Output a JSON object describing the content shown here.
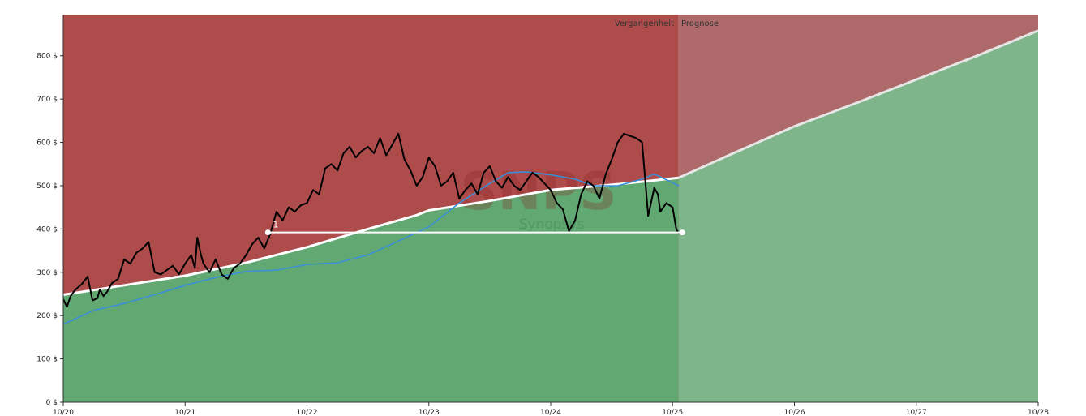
{
  "chart_data": {
    "type": "line",
    "watermark": {
      "ticker": "SNPS",
      "company": "Synopsys"
    },
    "region_labels": {
      "past": "Vergangenheit",
      "forecast": "Prognose"
    },
    "y_axis": {
      "ticks": [
        0,
        100,
        200,
        300,
        400,
        500,
        600,
        700,
        800
      ],
      "tick_labels": [
        "0 $",
        "100 $",
        "200 $",
        "300 $",
        "400 $",
        "500 $",
        "600 $",
        "700 $",
        "800 $"
      ],
      "ylim": [
        0,
        895
      ]
    },
    "x_axis": {
      "ticks": [
        2020,
        2021,
        2022,
        2023,
        2024,
        2025,
        2026,
        2027,
        2028
      ],
      "tick_labels": [
        "10/20",
        "10/21",
        "10/22",
        "10/23",
        "10/24",
        "10/25",
        "10/26",
        "10/27",
        "10/28"
      ],
      "xlim": [
        2020,
        2028
      ],
      "forecast_start": 2025.05
    },
    "colors": {
      "past_overvalued": "#ae4b4b",
      "past_undervalued": "#62a872",
      "forecast_overvalued": "#ae6a6a",
      "forecast_undervalued": "#7eb58b",
      "price": "#000000",
      "moving_average": "#3a8fd8",
      "fair_value": "#ffffff",
      "forecast_line": "#e6e6e6",
      "marker_line": "#ffffff"
    },
    "fair_value": {
      "x": [
        2020,
        2020.5,
        2021,
        2021.5,
        2022,
        2022.5,
        2022.9,
        2023,
        2023.5,
        2024,
        2024.5,
        2025.05
      ],
      "y": [
        248,
        270,
        292,
        322,
        358,
        400,
        432,
        443,
        465,
        490,
        502,
        518
      ]
    },
    "forecast": {
      "x": [
        2025.05,
        2025.5,
        2026,
        2026.5,
        2027,
        2027.5,
        2028
      ],
      "y": [
        518,
        575,
        637,
        690,
        745,
        800,
        858
      ]
    },
    "moving_average": {
      "x": [
        2020,
        2020.25,
        2020.5,
        2020.75,
        2021,
        2021.25,
        2021.5,
        2021.75,
        2022,
        2022.25,
        2022.5,
        2022.75,
        2023,
        2023.25,
        2023.5,
        2023.65,
        2023.8,
        2024,
        2024.2,
        2024.35,
        2024.55,
        2024.75,
        2024.85,
        2025.05
      ],
      "y": [
        180,
        212,
        228,
        248,
        270,
        288,
        302,
        305,
        318,
        322,
        340,
        372,
        405,
        460,
        505,
        530,
        532,
        525,
        515,
        500,
        500,
        515,
        527,
        500
      ]
    },
    "price": {
      "x": [
        2020,
        2020.03,
        2020.06,
        2020.1,
        2020.15,
        2020.2,
        2020.24,
        2020.28,
        2020.3,
        2020.33,
        2020.36,
        2020.4,
        2020.45,
        2020.5,
        2020.55,
        2020.6,
        2020.65,
        2020.7,
        2020.75,
        2020.8,
        2020.85,
        2020.9,
        2020.95,
        2021,
        2021.05,
        2021.08,
        2021.1,
        2021.13,
        2021.15,
        2021.2,
        2021.25,
        2021.3,
        2021.35,
        2021.4,
        2021.45,
        2021.5,
        2021.55,
        2021.6,
        2021.65,
        2021.7,
        2021.75,
        2021.8,
        2021.85,
        2021.9,
        2021.95,
        2022,
        2022.05,
        2022.1,
        2022.15,
        2022.2,
        2022.25,
        2022.3,
        2022.35,
        2022.4,
        2022.45,
        2022.5,
        2022.55,
        2022.6,
        2022.65,
        2022.7,
        2022.75,
        2022.8,
        2022.85,
        2022.9,
        2022.95,
        2023,
        2023.05,
        2023.1,
        2023.15,
        2023.2,
        2023.25,
        2023.3,
        2023.35,
        2023.4,
        2023.45,
        2023.5,
        2023.55,
        2023.6,
        2023.65,
        2023.7,
        2023.75,
        2023.8,
        2023.85,
        2023.9,
        2023.95,
        2024,
        2024.05,
        2024.1,
        2024.15,
        2024.2,
        2024.25,
        2024.3,
        2024.35,
        2024.4,
        2024.45,
        2024.5,
        2024.55,
        2024.6,
        2024.65,
        2024.7,
        2024.75,
        2024.8,
        2024.85,
        2024.88,
        2024.9,
        2024.95,
        2025,
        2025.03,
        2025.05
      ],
      "y": [
        238,
        220,
        245,
        260,
        272,
        290,
        235,
        240,
        260,
        245,
        255,
        275,
        285,
        330,
        320,
        345,
        355,
        370,
        300,
        295,
        305,
        315,
        295,
        320,
        340,
        310,
        380,
        340,
        320,
        300,
        330,
        295,
        285,
        310,
        320,
        340,
        365,
        380,
        355,
        390,
        440,
        420,
        450,
        440,
        455,
        460,
        490,
        480,
        540,
        550,
        535,
        575,
        590,
        565,
        580,
        590,
        575,
        610,
        570,
        595,
        620,
        560,
        535,
        500,
        520,
        565,
        545,
        500,
        510,
        530,
        470,
        490,
        505,
        480,
        530,
        545,
        510,
        495,
        520,
        500,
        490,
        510,
        530,
        520,
        505,
        490,
        460,
        445,
        395,
        420,
        480,
        510,
        500,
        470,
        525,
        560,
        600,
        620,
        615,
        610,
        600,
        430,
        495,
        480,
        440,
        460,
        450,
        400,
        390
      ],
      "note_price_values_only": true
    },
    "marker": {
      "label": "1",
      "x_start": 2021.68,
      "x_end": 2025.08,
      "y": 392
    }
  }
}
